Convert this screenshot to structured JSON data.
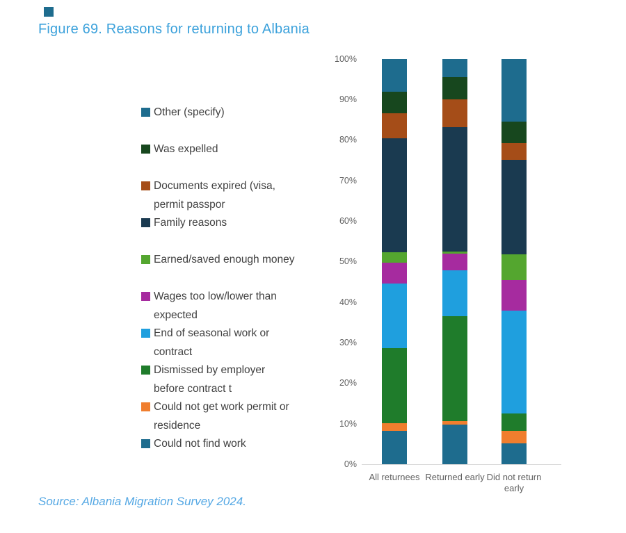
{
  "decor": {
    "corner_square_color": "#1E6C8E"
  },
  "title": {
    "text": "Figure 69. Reasons for returning to Albania",
    "color": "#3BA1DB"
  },
  "source": {
    "text": "Source: Albania Migration Survey 2024.",
    "color": "#55A8E4"
  },
  "colors": {
    "axis_text": "#616161",
    "legend_text": "#404040",
    "baseline": "#d9d9d9"
  },
  "chart_data": {
    "type": "bar",
    "stacked": true,
    "units": "percent",
    "title": "Figure 69. Reasons for returning to Albania",
    "categories": [
      "All returnees",
      "Returned early",
      "Did not return early"
    ],
    "series": [
      {
        "name": "Could not find work",
        "color": "#1E6C8E",
        "values": [
          8.2,
          9.7,
          5.1
        ]
      },
      {
        "name": "Could not get work permit or residence",
        "color": "#F07E2E",
        "values": [
          1.9,
          1.0,
          3.1
        ]
      },
      {
        "name": "Dismissed by employer before contract t",
        "color": "#1F7C2B",
        "values": [
          18.5,
          25.8,
          4.3
        ]
      },
      {
        "name": "End of seasonal work or contract",
        "color": "#1F9FDE",
        "values": [
          15.9,
          11.3,
          25.3
        ]
      },
      {
        "name": "Wages too low/lower than expected",
        "color": "#A62B9F",
        "values": [
          5.2,
          4.1,
          7.6
        ]
      },
      {
        "name": "Earned/saved enough money",
        "color": "#54A62F",
        "values": [
          2.6,
          0.6,
          6.3
        ]
      },
      {
        "name": "Family reasons",
        "color": "#1A3A50",
        "values": [
          28.0,
          30.6,
          23.3
        ]
      },
      {
        "name": "Documents expired (visa, permit passpor",
        "color": "#A54D18",
        "values": [
          6.2,
          6.9,
          4.1
        ]
      },
      {
        "name": "Was expelled",
        "color": "#17471E",
        "values": [
          5.4,
          5.5,
          5.4
        ]
      },
      {
        "name": "Other (specify)",
        "color": "#1E6C8E",
        "values": [
          8.1,
          4.5,
          15.5
        ]
      }
    ],
    "y_axis": {
      "min": 0,
      "max": 100,
      "tick_labels": [
        "0%",
        "10%",
        "20%",
        "30%",
        "40%",
        "50%",
        "60%",
        "70%",
        "80%",
        "90%",
        "100%"
      ]
    },
    "grid": false,
    "legend_position": "left",
    "legend_order_top_to_bottom": [
      "Other (specify)",
      "Was expelled",
      "Documents expired (visa, permit passpor",
      "Family reasons",
      "Earned/saved enough money",
      "Wages too low/lower than expected",
      "End of seasonal work or contract",
      "Dismissed by employer before contract t",
      "Could not get work permit or residence",
      "Could not find work"
    ]
  }
}
